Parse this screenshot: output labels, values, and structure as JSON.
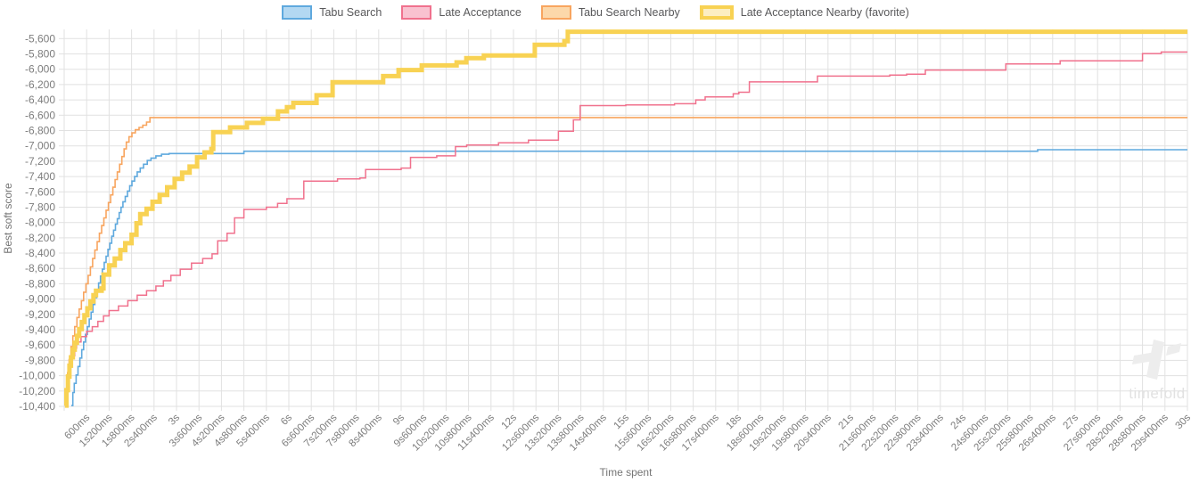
{
  "watermark": {
    "text": "timefold"
  },
  "chart_data": {
    "type": "line",
    "step": true,
    "grid": true,
    "legend_position": "top",
    "xlabel": "Time spent",
    "ylabel": "Best soft score",
    "x_unit": "seconds",
    "xlim": [
      0,
      30
    ],
    "ylim": [
      -10400,
      -5480
    ],
    "x_tick_interval_seconds": 0.6,
    "y_tick_interval": 200,
    "x_tick_labels": [
      "600ms",
      "1s200ms",
      "1s800ms",
      "2s400ms",
      "3s",
      "3s600ms",
      "4s200ms",
      "4s800ms",
      "5s400ms",
      "6s",
      "6s600ms",
      "7s200ms",
      "7s800ms",
      "8s400ms",
      "9s",
      "9s600ms",
      "10s200ms",
      "10s800ms",
      "11s400ms",
      "12s",
      "12s600ms",
      "13s200ms",
      "13s800ms",
      "14s400ms",
      "15s",
      "15s600ms",
      "16s200ms",
      "16s800ms",
      "17s400ms",
      "18s",
      "18s600ms",
      "19s200ms",
      "19s800ms",
      "20s400ms",
      "21s",
      "21s600ms",
      "22s200ms",
      "22s800ms",
      "23s400ms",
      "24s",
      "24s600ms",
      "25s200ms",
      "25s800ms",
      "26s400ms",
      "27s",
      "27s600ms",
      "28s200ms",
      "28s800ms",
      "29s400ms",
      "30s"
    ],
    "y_tick_labels": [
      "-5,600",
      "-5,800",
      "-6,000",
      "-6,200",
      "-6,400",
      "-6,600",
      "-6,800",
      "-7,000",
      "-7,200",
      "-7,400",
      "-7,600",
      "-7,800",
      "-8,000",
      "-8,200",
      "-8,400",
      "-8,600",
      "-8,800",
      "-9,000",
      "-9,200",
      "-9,400",
      "-9,600",
      "-9,800",
      "-10,000",
      "-10,200",
      "-10,400"
    ],
    "series": [
      {
        "name": "Tabu Search",
        "color": "#5fa9de",
        "fill_color": "#b3d8f2",
        "line_width": 1.6,
        "points": [
          [
            0.19,
            -10390
          ],
          [
            0.23,
            -10220
          ],
          [
            0.27,
            -10100
          ],
          [
            0.32,
            -9990
          ],
          [
            0.37,
            -9880
          ],
          [
            0.42,
            -9770
          ],
          [
            0.47,
            -9660
          ],
          [
            0.52,
            -9560
          ],
          [
            0.57,
            -9460
          ],
          [
            0.62,
            -9360
          ],
          [
            0.67,
            -9260
          ],
          [
            0.72,
            -9170
          ],
          [
            0.77,
            -9070
          ],
          [
            0.82,
            -8980
          ],
          [
            0.87,
            -8880
          ],
          [
            0.92,
            -8790
          ],
          [
            0.97,
            -8700
          ],
          [
            1.02,
            -8610
          ],
          [
            1.07,
            -8520
          ],
          [
            1.12,
            -8440
          ],
          [
            1.17,
            -8350
          ],
          [
            1.22,
            -8270
          ],
          [
            1.27,
            -8180
          ],
          [
            1.32,
            -8100
          ],
          [
            1.37,
            -8020
          ],
          [
            1.42,
            -7950
          ],
          [
            1.47,
            -7870
          ],
          [
            1.52,
            -7800
          ],
          [
            1.57,
            -7730
          ],
          [
            1.63,
            -7660
          ],
          [
            1.69,
            -7590
          ],
          [
            1.75,
            -7520
          ],
          [
            1.81,
            -7460
          ],
          [
            1.88,
            -7400
          ],
          [
            1.95,
            -7340
          ],
          [
            2.03,
            -7290
          ],
          [
            2.12,
            -7240
          ],
          [
            2.22,
            -7190
          ],
          [
            2.32,
            -7160
          ],
          [
            2.45,
            -7130
          ],
          [
            2.6,
            -7110
          ],
          [
            2.8,
            -7100
          ],
          [
            4.8,
            -7070
          ],
          [
            26.0,
            -7050
          ]
        ]
      },
      {
        "name": "Late Acceptance",
        "color": "#f0718d",
        "fill_color": "#f9c2d0",
        "line_width": 1.5,
        "points": [
          [
            0.03,
            -10360
          ],
          [
            0.07,
            -10160
          ],
          [
            0.11,
            -9990
          ],
          [
            0.16,
            -9860
          ],
          [
            0.22,
            -9740
          ],
          [
            0.28,
            -9640
          ],
          [
            0.33,
            -9560
          ],
          [
            0.45,
            -9490
          ],
          [
            0.6,
            -9420
          ],
          [
            0.75,
            -9360
          ],
          [
            0.9,
            -9290
          ],
          [
            1.05,
            -9220
          ],
          [
            1.2,
            -9150
          ],
          [
            1.45,
            -9090
          ],
          [
            1.7,
            -9020
          ],
          [
            1.95,
            -8950
          ],
          [
            2.2,
            -8890
          ],
          [
            2.45,
            -8830
          ],
          [
            2.65,
            -8760
          ],
          [
            2.85,
            -8690
          ],
          [
            3.1,
            -8610
          ],
          [
            3.4,
            -8530
          ],
          [
            3.7,
            -8470
          ],
          [
            3.95,
            -8410
          ],
          [
            4.1,
            -8240
          ],
          [
            4.35,
            -8140
          ],
          [
            4.55,
            -7940
          ],
          [
            4.8,
            -7830
          ],
          [
            5.4,
            -7800
          ],
          [
            5.7,
            -7750
          ],
          [
            5.95,
            -7690
          ],
          [
            6.4,
            -7460
          ],
          [
            7.3,
            -7430
          ],
          [
            7.9,
            -7420
          ],
          [
            8.05,
            -7310
          ],
          [
            9.0,
            -7290
          ],
          [
            9.25,
            -7150
          ],
          [
            9.95,
            -7130
          ],
          [
            10.45,
            -7010
          ],
          [
            10.75,
            -6990
          ],
          [
            11.6,
            -6960
          ],
          [
            12.4,
            -6925
          ],
          [
            13.2,
            -6810
          ],
          [
            13.6,
            -6660
          ],
          [
            13.78,
            -6475
          ],
          [
            15.0,
            -6465
          ],
          [
            16.3,
            -6450
          ],
          [
            16.87,
            -6400
          ],
          [
            17.12,
            -6360
          ],
          [
            17.87,
            -6320
          ],
          [
            18.02,
            -6300
          ],
          [
            18.3,
            -6165
          ],
          [
            20.12,
            -6090
          ],
          [
            22.05,
            -6075
          ],
          [
            22.5,
            -6065
          ],
          [
            23.0,
            -6010
          ],
          [
            25.15,
            -5930
          ],
          [
            26.6,
            -5890
          ],
          [
            28.8,
            -5795
          ],
          [
            29.3,
            -5775
          ]
        ]
      },
      {
        "name": "Tabu Search Nearby",
        "color": "#f8a55f",
        "fill_color": "#fcd8aa",
        "line_width": 1.6,
        "points": [
          [
            0.02,
            -10390
          ],
          [
            0.05,
            -10170
          ],
          [
            0.09,
            -9960
          ],
          [
            0.13,
            -9790
          ],
          [
            0.18,
            -9620
          ],
          [
            0.23,
            -9480
          ],
          [
            0.28,
            -9360
          ],
          [
            0.34,
            -9240
          ],
          [
            0.4,
            -9130
          ],
          [
            0.46,
            -9020
          ],
          [
            0.52,
            -8910
          ],
          [
            0.58,
            -8800
          ],
          [
            0.64,
            -8690
          ],
          [
            0.7,
            -8580
          ],
          [
            0.76,
            -8470
          ],
          [
            0.82,
            -8360
          ],
          [
            0.88,
            -8250
          ],
          [
            0.94,
            -8140
          ],
          [
            1.0,
            -8040
          ],
          [
            1.06,
            -7940
          ],
          [
            1.12,
            -7840
          ],
          [
            1.18,
            -7740
          ],
          [
            1.24,
            -7640
          ],
          [
            1.3,
            -7540
          ],
          [
            1.36,
            -7440
          ],
          [
            1.42,
            -7340
          ],
          [
            1.48,
            -7240
          ],
          [
            1.54,
            -7140
          ],
          [
            1.6,
            -7040
          ],
          [
            1.66,
            -6950
          ],
          [
            1.73,
            -6880
          ],
          [
            1.81,
            -6830
          ],
          [
            1.9,
            -6790
          ],
          [
            2.0,
            -6760
          ],
          [
            2.1,
            -6730
          ],
          [
            2.2,
            -6690
          ],
          [
            2.29,
            -6630
          ]
        ]
      },
      {
        "name": "Late Acceptance Nearby (favorite)",
        "color": "#f8d253",
        "fill_color": "#fceec2",
        "line_width": 5,
        "points": [
          [
            0.02,
            -10390
          ],
          [
            0.06,
            -10190
          ],
          [
            0.1,
            -10010
          ],
          [
            0.14,
            -9870
          ],
          [
            0.18,
            -9760
          ],
          [
            0.23,
            -9660
          ],
          [
            0.28,
            -9570
          ],
          [
            0.34,
            -9480
          ],
          [
            0.4,
            -9390
          ],
          [
            0.47,
            -9300
          ],
          [
            0.54,
            -9210
          ],
          [
            0.62,
            -9120
          ],
          [
            0.7,
            -9030
          ],
          [
            0.78,
            -8950
          ],
          [
            0.85,
            -8890
          ],
          [
            1.0,
            -8860
          ],
          [
            1.05,
            -8680
          ],
          [
            1.2,
            -8560
          ],
          [
            1.35,
            -8470
          ],
          [
            1.5,
            -8360
          ],
          [
            1.63,
            -8270
          ],
          [
            1.8,
            -8160
          ],
          [
            1.93,
            -8010
          ],
          [
            2.03,
            -7890
          ],
          [
            2.2,
            -7820
          ],
          [
            2.36,
            -7730
          ],
          [
            2.55,
            -7640
          ],
          [
            2.75,
            -7540
          ],
          [
            2.95,
            -7430
          ],
          [
            3.15,
            -7350
          ],
          [
            3.35,
            -7270
          ],
          [
            3.55,
            -7150
          ],
          [
            3.75,
            -7085
          ],
          [
            3.93,
            -7040
          ],
          [
            3.98,
            -6820
          ],
          [
            4.43,
            -6760
          ],
          [
            4.88,
            -6700
          ],
          [
            5.31,
            -6645
          ],
          [
            5.71,
            -6550
          ],
          [
            5.95,
            -6495
          ],
          [
            6.12,
            -6440
          ],
          [
            6.74,
            -6340
          ],
          [
            7.17,
            -6170
          ],
          [
            8.52,
            -6090
          ],
          [
            8.93,
            -6010
          ],
          [
            9.55,
            -5950
          ],
          [
            10.48,
            -5910
          ],
          [
            10.74,
            -5855
          ],
          [
            11.21,
            -5820
          ],
          [
            12.57,
            -5680
          ],
          [
            13.36,
            -5635
          ],
          [
            13.45,
            -5510
          ]
        ]
      }
    ]
  }
}
